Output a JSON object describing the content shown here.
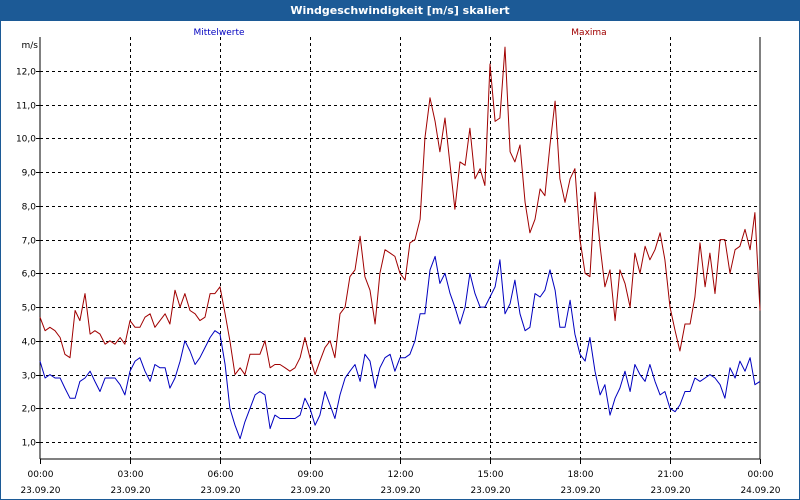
{
  "window": {
    "title": "Windgeschwindigkeit [m/s] skaliert"
  },
  "chart_data": {
    "type": "line",
    "title": "Windgeschwindigkeit [m/s] skaliert",
    "ylabel": "m/s",
    "xlabel": "",
    "ylim": [
      0.5,
      13.0
    ],
    "y_ticks": [
      1.0,
      2.0,
      3.0,
      4.0,
      5.0,
      6.0,
      7.0,
      8.0,
      9.0,
      10.0,
      11.0,
      12.0
    ],
    "y_tick_labels": [
      "1,0",
      "2,0",
      "3,0",
      "4,0",
      "5,0",
      "6,0",
      "7,0",
      "8,0",
      "9,0",
      "10,0",
      "11,0",
      "12,0"
    ],
    "xlim": [
      0,
      24
    ],
    "x_ticks": [
      0,
      3,
      6,
      9,
      12,
      15,
      18,
      21,
      24
    ],
    "x_tick_labels": [
      {
        "time": "00:00",
        "date": "23.09.20"
      },
      {
        "time": "03:00",
        "date": "23.09.20"
      },
      {
        "time": "06:00",
        "date": "23.09.20"
      },
      {
        "time": "09:00",
        "date": "23.09.20"
      },
      {
        "time": "12:00",
        "date": "23.09.20"
      },
      {
        "time": "15:00",
        "date": "23.09.20"
      },
      {
        "time": "18:00",
        "date": "23.09.20"
      },
      {
        "time": "21:00",
        "date": "23.09.20"
      },
      {
        "time": "00:00",
        "date": "24.09.20"
      }
    ],
    "grid": true,
    "series": [
      {
        "name": "Mittelwerte",
        "color": "#0000c0",
        "points": [
          [
            0.0,
            3.4
          ],
          [
            0.17,
            2.9
          ],
          [
            0.33,
            3.0
          ],
          [
            0.5,
            2.9
          ],
          [
            0.67,
            2.9
          ],
          [
            0.83,
            2.6
          ],
          [
            1.0,
            2.3
          ],
          [
            1.17,
            2.3
          ],
          [
            1.33,
            2.8
          ],
          [
            1.5,
            2.9
          ],
          [
            1.67,
            3.1
          ],
          [
            1.83,
            2.8
          ],
          [
            2.0,
            2.5
          ],
          [
            2.17,
            2.9
          ],
          [
            2.33,
            2.9
          ],
          [
            2.5,
            2.9
          ],
          [
            2.67,
            2.7
          ],
          [
            2.83,
            2.4
          ],
          [
            3.0,
            3.1
          ],
          [
            3.17,
            3.4
          ],
          [
            3.33,
            3.5
          ],
          [
            3.5,
            3.1
          ],
          [
            3.67,
            2.8
          ],
          [
            3.83,
            3.3
          ],
          [
            4.0,
            3.2
          ],
          [
            4.17,
            3.2
          ],
          [
            4.33,
            2.6
          ],
          [
            4.5,
            2.9
          ],
          [
            4.67,
            3.4
          ],
          [
            4.83,
            4.0
          ],
          [
            5.0,
            3.7
          ],
          [
            5.17,
            3.3
          ],
          [
            5.33,
            3.5
          ],
          [
            5.5,
            3.8
          ],
          [
            5.67,
            4.1
          ],
          [
            5.83,
            4.3
          ],
          [
            6.0,
            4.2
          ],
          [
            6.17,
            3.3
          ],
          [
            6.33,
            2.0
          ],
          [
            6.5,
            1.5
          ],
          [
            6.67,
            1.1
          ],
          [
            6.83,
            1.6
          ],
          [
            7.0,
            2.0
          ],
          [
            7.17,
            2.4
          ],
          [
            7.33,
            2.5
          ],
          [
            7.5,
            2.4
          ],
          [
            7.67,
            1.4
          ],
          [
            7.83,
            1.8
          ],
          [
            8.0,
            1.7
          ],
          [
            8.17,
            1.7
          ],
          [
            8.33,
            1.7
          ],
          [
            8.5,
            1.7
          ],
          [
            8.67,
            1.8
          ],
          [
            8.83,
            2.3
          ],
          [
            9.0,
            2.0
          ],
          [
            9.17,
            1.5
          ],
          [
            9.33,
            1.8
          ],
          [
            9.5,
            2.5
          ],
          [
            9.67,
            2.1
          ],
          [
            9.83,
            1.7
          ],
          [
            10.0,
            2.4
          ],
          [
            10.17,
            2.9
          ],
          [
            10.33,
            3.1
          ],
          [
            10.5,
            3.3
          ],
          [
            10.67,
            2.8
          ],
          [
            10.83,
            3.6
          ],
          [
            11.0,
            3.4
          ],
          [
            11.17,
            2.6
          ],
          [
            11.33,
            3.2
          ],
          [
            11.5,
            3.5
          ],
          [
            11.67,
            3.6
          ],
          [
            11.83,
            3.1
          ],
          [
            12.0,
            3.5
          ],
          [
            12.17,
            3.5
          ],
          [
            12.33,
            3.6
          ],
          [
            12.5,
            4.0
          ],
          [
            12.67,
            4.8
          ],
          [
            12.83,
            4.8
          ],
          [
            13.0,
            6.1
          ],
          [
            13.17,
            6.5
          ],
          [
            13.33,
            5.7
          ],
          [
            13.5,
            6.0
          ],
          [
            13.67,
            5.4
          ],
          [
            13.83,
            5.0
          ],
          [
            14.0,
            4.5
          ],
          [
            14.17,
            5.0
          ],
          [
            14.33,
            6.0
          ],
          [
            14.5,
            5.4
          ],
          [
            14.67,
            5.0
          ],
          [
            14.83,
            5.0
          ],
          [
            15.0,
            5.3
          ],
          [
            15.17,
            5.6
          ],
          [
            15.33,
            6.4
          ],
          [
            15.5,
            4.8
          ],
          [
            15.67,
            5.1
          ],
          [
            15.83,
            5.8
          ],
          [
            16.0,
            4.8
          ],
          [
            16.17,
            4.3
          ],
          [
            16.33,
            4.4
          ],
          [
            16.5,
            5.4
          ],
          [
            16.67,
            5.3
          ],
          [
            16.83,
            5.5
          ],
          [
            17.0,
            6.1
          ],
          [
            17.17,
            5.5
          ],
          [
            17.33,
            4.4
          ],
          [
            17.5,
            4.4
          ],
          [
            17.67,
            5.2
          ],
          [
            17.83,
            4.2
          ],
          [
            18.0,
            3.6
          ],
          [
            18.17,
            3.4
          ],
          [
            18.33,
            4.1
          ],
          [
            18.5,
            3.1
          ],
          [
            18.67,
            2.4
          ],
          [
            18.83,
            2.7
          ],
          [
            19.0,
            1.8
          ],
          [
            19.17,
            2.3
          ],
          [
            19.33,
            2.6
          ],
          [
            19.5,
            3.1
          ],
          [
            19.67,
            2.5
          ],
          [
            19.83,
            3.3
          ],
          [
            20.0,
            3.0
          ],
          [
            20.17,
            2.8
          ],
          [
            20.33,
            3.3
          ],
          [
            20.5,
            2.8
          ],
          [
            20.67,
            2.4
          ],
          [
            20.83,
            2.5
          ],
          [
            21.0,
            2.0
          ],
          [
            21.17,
            1.9
          ],
          [
            21.33,
            2.1
          ],
          [
            21.5,
            2.5
          ],
          [
            21.67,
            2.5
          ],
          [
            21.83,
            2.9
          ],
          [
            22.0,
            2.8
          ],
          [
            22.17,
            2.9
          ],
          [
            22.33,
            3.0
          ],
          [
            22.5,
            2.9
          ],
          [
            22.67,
            2.7
          ],
          [
            22.83,
            2.3
          ],
          [
            23.0,
            3.2
          ],
          [
            23.17,
            2.9
          ],
          [
            23.33,
            3.4
          ],
          [
            23.5,
            3.1
          ],
          [
            23.67,
            3.5
          ],
          [
            23.83,
            2.7
          ],
          [
            24.0,
            2.8
          ]
        ]
      },
      {
        "name": "Maxima",
        "color": "#a00000",
        "points": [
          [
            0.0,
            4.7
          ],
          [
            0.17,
            4.3
          ],
          [
            0.33,
            4.4
          ],
          [
            0.5,
            4.3
          ],
          [
            0.67,
            4.1
          ],
          [
            0.83,
            3.6
          ],
          [
            1.0,
            3.5
          ],
          [
            1.17,
            4.9
          ],
          [
            1.33,
            4.6
          ],
          [
            1.5,
            5.4
          ],
          [
            1.67,
            4.2
          ],
          [
            1.83,
            4.3
          ],
          [
            2.0,
            4.2
          ],
          [
            2.17,
            3.9
          ],
          [
            2.33,
            4.0
          ],
          [
            2.5,
            3.9
          ],
          [
            2.67,
            4.1
          ],
          [
            2.83,
            3.9
          ],
          [
            3.0,
            4.6
          ],
          [
            3.17,
            4.4
          ],
          [
            3.33,
            4.4
          ],
          [
            3.5,
            4.7
          ],
          [
            3.67,
            4.8
          ],
          [
            3.83,
            4.4
          ],
          [
            4.0,
            4.6
          ],
          [
            4.17,
            4.8
          ],
          [
            4.33,
            4.5
          ],
          [
            4.5,
            5.5
          ],
          [
            4.67,
            5.0
          ],
          [
            4.83,
            5.4
          ],
          [
            5.0,
            4.9
          ],
          [
            5.17,
            4.8
          ],
          [
            5.33,
            4.6
          ],
          [
            5.5,
            4.7
          ],
          [
            5.67,
            5.4
          ],
          [
            5.83,
            5.4
          ],
          [
            6.0,
            5.6
          ],
          [
            6.17,
            4.8
          ],
          [
            6.33,
            4.0
          ],
          [
            6.5,
            3.0
          ],
          [
            6.67,
            3.2
          ],
          [
            6.83,
            3.0
          ],
          [
            7.0,
            3.6
          ],
          [
            7.17,
            3.6
          ],
          [
            7.33,
            3.6
          ],
          [
            7.5,
            4.0
          ],
          [
            7.67,
            3.2
          ],
          [
            7.83,
            3.3
          ],
          [
            8.0,
            3.3
          ],
          [
            8.17,
            3.2
          ],
          [
            8.33,
            3.1
          ],
          [
            8.5,
            3.2
          ],
          [
            8.67,
            3.5
          ],
          [
            8.83,
            4.1
          ],
          [
            9.0,
            3.5
          ],
          [
            9.17,
            3.0
          ],
          [
            9.33,
            3.4
          ],
          [
            9.5,
            3.8
          ],
          [
            9.67,
            4.0
          ],
          [
            9.83,
            3.5
          ],
          [
            10.0,
            4.8
          ],
          [
            10.17,
            5.0
          ],
          [
            10.33,
            5.9
          ],
          [
            10.5,
            6.1
          ],
          [
            10.67,
            7.1
          ],
          [
            10.83,
            5.9
          ],
          [
            11.0,
            5.5
          ],
          [
            11.17,
            4.5
          ],
          [
            11.33,
            6.0
          ],
          [
            11.5,
            6.7
          ],
          [
            11.67,
            6.6
          ],
          [
            11.83,
            6.5
          ],
          [
            12.0,
            6.0
          ],
          [
            12.17,
            5.8
          ],
          [
            12.33,
            6.9
          ],
          [
            12.5,
            7.0
          ],
          [
            12.67,
            7.6
          ],
          [
            12.83,
            10.0
          ],
          [
            13.0,
            11.2
          ],
          [
            13.17,
            10.5
          ],
          [
            13.33,
            9.6
          ],
          [
            13.5,
            10.6
          ],
          [
            13.67,
            9.2
          ],
          [
            13.83,
            7.9
          ],
          [
            14.0,
            9.3
          ],
          [
            14.17,
            9.2
          ],
          [
            14.33,
            10.3
          ],
          [
            14.5,
            8.8
          ],
          [
            14.67,
            9.1
          ],
          [
            14.83,
            8.6
          ],
          [
            15.0,
            12.2
          ],
          [
            15.17,
            10.5
          ],
          [
            15.33,
            10.6
          ],
          [
            15.5,
            12.7
          ],
          [
            15.67,
            9.6
          ],
          [
            15.83,
            9.3
          ],
          [
            16.0,
            9.8
          ],
          [
            16.17,
            8.1
          ],
          [
            16.33,
            7.2
          ],
          [
            16.5,
            7.6
          ],
          [
            16.67,
            8.5
          ],
          [
            16.83,
            8.3
          ],
          [
            17.0,
            9.8
          ],
          [
            17.17,
            11.1
          ],
          [
            17.33,
            8.8
          ],
          [
            17.5,
            8.1
          ],
          [
            17.67,
            8.8
          ],
          [
            17.83,
            9.1
          ],
          [
            18.0,
            7.0
          ],
          [
            18.17,
            6.0
          ],
          [
            18.33,
            5.9
          ],
          [
            18.5,
            8.4
          ],
          [
            18.67,
            6.8
          ],
          [
            18.83,
            5.6
          ],
          [
            19.0,
            6.1
          ],
          [
            19.17,
            4.6
          ],
          [
            19.33,
            6.1
          ],
          [
            19.5,
            5.7
          ],
          [
            19.67,
            5.0
          ],
          [
            19.83,
            6.6
          ],
          [
            20.0,
            6.0
          ],
          [
            20.17,
            6.8
          ],
          [
            20.33,
            6.4
          ],
          [
            20.5,
            6.7
          ],
          [
            20.67,
            7.2
          ],
          [
            20.83,
            6.4
          ],
          [
            21.0,
            5.0
          ],
          [
            21.17,
            4.3
          ],
          [
            21.33,
            3.7
          ],
          [
            21.5,
            4.5
          ],
          [
            21.67,
            4.5
          ],
          [
            21.83,
            5.3
          ],
          [
            22.0,
            6.9
          ],
          [
            22.17,
            5.6
          ],
          [
            22.33,
            6.6
          ],
          [
            22.5,
            5.4
          ],
          [
            22.67,
            7.0
          ],
          [
            22.83,
            7.0
          ],
          [
            23.0,
            6.0
          ],
          [
            23.17,
            6.7
          ],
          [
            23.33,
            6.8
          ],
          [
            23.5,
            7.3
          ],
          [
            23.67,
            6.7
          ],
          [
            23.83,
            7.8
          ],
          [
            24.0,
            4.9
          ]
        ]
      }
    ]
  }
}
